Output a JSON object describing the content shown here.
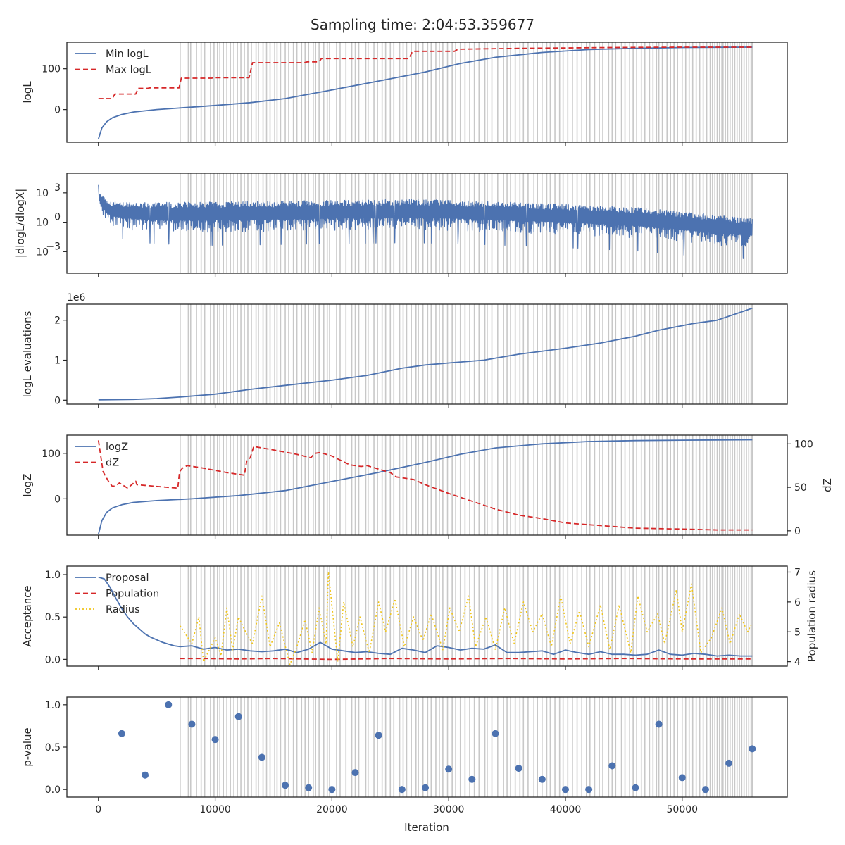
{
  "title": "Sampling time: 2:04:53.359677",
  "xlabel": "Iteration",
  "colors": {
    "blue": "#4c72b0",
    "red": "#d62728",
    "yellow": "#f0c419",
    "vline": "#c8c8c8",
    "axis": "#262626"
  },
  "chart_data": [
    {
      "type": "line",
      "panel": "logL",
      "ylabel": "logL",
      "ylim": [
        -80,
        165
      ],
      "yticks": [
        0,
        100
      ],
      "xlim": [
        -2700,
        59000
      ],
      "xticks": [
        0,
        10000,
        20000,
        30000,
        40000,
        50000
      ],
      "legend": "top-left",
      "series": [
        {
          "name": "Min logL",
          "style": "solid",
          "color": "#4c72b0",
          "x": [
            0,
            300,
            700,
            1200,
            2000,
            3000,
            4000,
            5000,
            7000,
            10000,
            13000,
            16000,
            20000,
            24000,
            28000,
            31000,
            34000,
            38000,
            42000,
            46000,
            50000,
            53000,
            56000
          ],
          "y": [
            -72,
            -45,
            -30,
            -20,
            -12,
            -6,
            -3,
            0,
            4,
            10,
            17,
            27,
            48,
            70,
            92,
            113,
            128,
            140,
            147,
            150,
            152,
            152.5,
            153
          ]
        },
        {
          "name": "Max logL",
          "style": "dashed",
          "color": "#d62728",
          "x": [
            0,
            1200,
            1400,
            3200,
            3400,
            4200,
            4400,
            6900,
            7100,
            9700,
            9900,
            12900,
            13200,
            17600,
            17900,
            18900,
            19100,
            26600,
            26900,
            30500,
            30800,
            36000,
            40000,
            44000,
            50000,
            56000
          ],
          "y": [
            27,
            27,
            38,
            38,
            52,
            52,
            53,
            53,
            77,
            77,
            78,
            78,
            115,
            115,
            117,
            117,
            125,
            125,
            143,
            143,
            148,
            150,
            151,
            152,
            153,
            153
          ]
        }
      ]
    },
    {
      "type": "line",
      "panel": "dlogL",
      "ylabel": "|dlogL/dlogX|",
      "yscale": "log",
      "ylim": [
        -5.2,
        5.0
      ],
      "yticks": [
        3,
        0,
        -3
      ],
      "yticklabels": [
        "10",
        "10",
        "10"
      ],
      "ytickexp": [
        "3",
        "0",
        "−3"
      ],
      "xlim": [
        -2700,
        59000
      ],
      "series": [
        {
          "name": "",
          "style": "noisy-band",
          "color": "#4c72b0",
          "x": [
            0,
            200,
            1000,
            3000,
            8000,
            15000,
            20000,
            27000,
            33000,
            40000,
            47000,
            53000,
            56000
          ],
          "center_log10": [
            3.0,
            2.2,
            1.3,
            1.1,
            1.0,
            1.1,
            1.2,
            1.3,
            1.1,
            0.8,
            0.4,
            -0.3,
            -0.6
          ],
          "spread": [
            0.5,
            0.8,
            1.0,
            1.2,
            1.3,
            1.3,
            1.3,
            1.3,
            1.3,
            1.3,
            1.3,
            1.3,
            1.2
          ]
        }
      ]
    },
    {
      "type": "line",
      "panel": "evaluations",
      "ylabel": "logL evaluations",
      "yscale_label": "1e6",
      "ylim": [
        -0.1,
        2.4
      ],
      "yticks": [
        0,
        1,
        2
      ],
      "xlim": [
        -2700,
        59000
      ],
      "series": [
        {
          "name": "",
          "style": "solid",
          "color": "#4c72b0",
          "x": [
            0,
            3000,
            5000,
            7000,
            10000,
            13000,
            16000,
            20000,
            23000,
            26000,
            28000,
            30000,
            33000,
            36000,
            40000,
            43000,
            46000,
            48000,
            51000,
            53000,
            55000,
            56000
          ],
          "y": [
            0.01,
            0.02,
            0.04,
            0.08,
            0.15,
            0.27,
            0.37,
            0.5,
            0.62,
            0.8,
            0.88,
            0.93,
            1.0,
            1.15,
            1.3,
            1.43,
            1.6,
            1.75,
            1.92,
            2.0,
            2.2,
            2.3
          ]
        }
      ]
    },
    {
      "type": "line",
      "panel": "logZ",
      "ylabel": "logZ",
      "ylabel_right": "dZ",
      "ylim": [
        -80,
        140
      ],
      "yticks": [
        0,
        100
      ],
      "ylim_right": [
        -5,
        110
      ],
      "yticks_right": [
        0,
        50,
        100
      ],
      "xlim": [
        -2700,
        59000
      ],
      "legend": "top-left",
      "series": [
        {
          "name": "logZ",
          "style": "solid",
          "color": "#4c72b0",
          "axis": "left",
          "x": [
            0,
            300,
            700,
            1200,
            2000,
            3000,
            5000,
            8000,
            12000,
            16000,
            20000,
            24000,
            28000,
            31000,
            34000,
            38000,
            42000,
            46000,
            50000,
            56000
          ],
          "y": [
            -78,
            -48,
            -30,
            -20,
            -13,
            -8,
            -4,
            0,
            7,
            18,
            38,
            58,
            80,
            98,
            112,
            121,
            126,
            128,
            129,
            130
          ]
        },
        {
          "name": "dZ",
          "style": "dashed",
          "color": "#d62728",
          "axis": "right",
          "x": [
            0,
            400,
            900,
            1200,
            1500,
            1800,
            2500,
            3200,
            3300,
            6800,
            6950,
            7200,
            7600,
            9000,
            11000,
            12500,
            12700,
            13000,
            13300,
            15000,
            17000,
            18200,
            18500,
            19000,
            20000,
            21500,
            22500,
            23000,
            24000,
            25000,
            25500,
            26500,
            27000,
            28000,
            30000,
            32000,
            34000,
            36000,
            38000,
            40000,
            43000,
            46000,
            50000,
            53000,
            56000
          ],
          "y": [
            104,
            68,
            56,
            51,
            52,
            55,
            49,
            57,
            53,
            49,
            68,
            72,
            75,
            72,
            67,
            64,
            80,
            84,
            97,
            93,
            88,
            84,
            89,
            90,
            86,
            76,
            74,
            75,
            71,
            67,
            62,
            60,
            59,
            53,
            43,
            34,
            25,
            18,
            14,
            9,
            6,
            3,
            2,
            1,
            1
          ]
        }
      ]
    },
    {
      "type": "line",
      "panel": "acceptance",
      "ylabel": "Acceptance",
      "ylabel_right": "Population radius",
      "ylim": [
        -0.08,
        1.1
      ],
      "yticks": [
        0.0,
        0.5,
        1.0
      ],
      "yticklabels": [
        "0.0",
        "0.5",
        "1.0"
      ],
      "ylim_right": [
        3.85,
        7.2
      ],
      "yticks_right": [
        4,
        5,
        6,
        7
      ],
      "xlim": [
        -2700,
        59000
      ],
      "legend": "top-left",
      "series": [
        {
          "name": "Proposal",
          "style": "solid",
          "color": "#4c72b0",
          "axis": "left",
          "x": [
            0,
            500,
            1000,
            1500,
            2000,
            2500,
            3000,
            3500,
            4000,
            4500,
            5000,
            5500,
            6000,
            6500,
            7000,
            8000,
            9000,
            10000,
            11000,
            12000,
            13000,
            14000,
            15000,
            16000,
            17000,
            18000,
            19000,
            20000,
            21000,
            22000,
            23000,
            24000,
            25000,
            26000,
            27000,
            28000,
            29000,
            30000,
            31000,
            32000,
            33000,
            34000,
            35000,
            36000,
            37000,
            38000,
            39000,
            40000,
            41000,
            42000,
            43000,
            44000,
            45000,
            46000,
            47000,
            48000,
            49000,
            50000,
            51000,
            52000,
            53000,
            54000,
            55000,
            56000
          ],
          "y": [
            0.97,
            0.95,
            0.85,
            0.72,
            0.6,
            0.5,
            0.42,
            0.36,
            0.3,
            0.26,
            0.23,
            0.2,
            0.18,
            0.16,
            0.15,
            0.16,
            0.12,
            0.14,
            0.11,
            0.12,
            0.1,
            0.09,
            0.1,
            0.12,
            0.08,
            0.12,
            0.2,
            0.12,
            0.1,
            0.08,
            0.09,
            0.07,
            0.06,
            0.13,
            0.11,
            0.08,
            0.16,
            0.14,
            0.11,
            0.13,
            0.12,
            0.17,
            0.08,
            0.08,
            0.09,
            0.1,
            0.06,
            0.11,
            0.08,
            0.06,
            0.09,
            0.06,
            0.06,
            0.05,
            0.06,
            0.11,
            0.06,
            0.05,
            0.07,
            0.06,
            0.04,
            0.05,
            0.04,
            0.04
          ]
        },
        {
          "name": "Population",
          "style": "dashed",
          "color": "#d62728",
          "axis": "left",
          "x": [
            7000,
            9000,
            12000,
            15000,
            20000,
            25000,
            30000,
            35000,
            40000,
            45000,
            50000,
            56000
          ],
          "y": [
            0.01,
            0.01,
            0.005,
            0.01,
            0.0,
            0.01,
            0.005,
            0.01,
            0.005,
            0.01,
            0.005,
            0.005
          ]
        },
        {
          "name": "Radius",
          "style": "dotted",
          "color": "#f0c419",
          "axis": "right",
          "x": [
            7000,
            8000,
            8600,
            9000,
            10000,
            10500,
            11000,
            11500,
            12000,
            12600,
            13200,
            14000,
            14700,
            15500,
            16400,
            17000,
            17700,
            18300,
            18900,
            19500,
            19700,
            20500,
            21000,
            21800,
            22400,
            23200,
            24000,
            24600,
            25400,
            26200,
            27000,
            27800,
            28500,
            29500,
            30100,
            30900,
            31700,
            32300,
            33200,
            34000,
            34800,
            35600,
            36400,
            37200,
            38000,
            38800,
            39600,
            40400,
            41200,
            42000,
            43000,
            43800,
            44600,
            45600,
            46200,
            47000,
            47900,
            48500,
            49500,
            50000,
            50800,
            51600,
            52500,
            53400,
            54100,
            54900,
            55600,
            56000
          ],
          "y": [
            5.2,
            4.6,
            5.5,
            4.0,
            4.8,
            4.2,
            5.8,
            4.4,
            5.5,
            5.0,
            4.6,
            6.2,
            4.5,
            5.3,
            3.9,
            4.5,
            5.4,
            4.3,
            5.8,
            4.6,
            7.0,
            4.0,
            6.0,
            4.5,
            5.5,
            4.3,
            6.0,
            5.0,
            6.1,
            4.5,
            5.5,
            4.7,
            5.6,
            4.4,
            5.8,
            5.0,
            6.2,
            4.5,
            5.5,
            4.4,
            5.8,
            4.6,
            6.0,
            5.0,
            5.6,
            4.5,
            6.2,
            4.6,
            5.7,
            4.5,
            5.9,
            4.4,
            5.9,
            4.3,
            6.2,
            5.0,
            5.6,
            4.6,
            6.4,
            5.0,
            6.6,
            4.3,
            4.8,
            5.8,
            4.6,
            5.6,
            5.0,
            5.3
          ]
        }
      ]
    },
    {
      "type": "scatter",
      "panel": "pvalue",
      "ylabel": "p-value",
      "ylim": [
        -0.09,
        1.09
      ],
      "yticks": [
        0.0,
        0.5,
        1.0
      ],
      "yticklabels": [
        "0.0",
        "0.5",
        "1.0"
      ],
      "xlim": [
        -2700,
        59000
      ],
      "xticks": [
        0,
        10000,
        20000,
        30000,
        40000,
        50000
      ],
      "xticklabels": [
        "0",
        "10000",
        "20000",
        "30000",
        "40000",
        "50000"
      ],
      "series": [
        {
          "name": "",
          "color": "#4c72b0",
          "x": [
            2000,
            4000,
            6000,
            8000,
            10000,
            12000,
            14000,
            16000,
            18000,
            20000,
            22000,
            24000,
            26000,
            28000,
            30000,
            32000,
            34000,
            36000,
            38000,
            40000,
            42000,
            44000,
            46000,
            48000,
            50000,
            52000,
            54000,
            56000
          ],
          "y": [
            0.66,
            0.17,
            1.0,
            0.77,
            0.59,
            0.86,
            0.38,
            0.05,
            0.02,
            0.0,
            0.2,
            0.64,
            0.0,
            0.02,
            0.24,
            0.12,
            0.66,
            0.25,
            0.12,
            0.0,
            0.0,
            0.28,
            0.02,
            0.77,
            0.14,
            0.0,
            0.31,
            0.48
          ]
        }
      ]
    }
  ],
  "vlines_x": [
    7000,
    7700,
    7900,
    8400,
    8800,
    9100,
    9600,
    9900,
    10200,
    10400,
    10700,
    11000,
    11300,
    11600,
    11900,
    12200,
    12500,
    12800,
    13100,
    13500,
    13700,
    14100,
    14400,
    14700,
    15100,
    15300,
    15600,
    16000,
    16300,
    16700,
    17000,
    17400,
    17700,
    18000,
    18400,
    18600,
    18900,
    19300,
    19600,
    19800,
    20400,
    20700,
    21200,
    21700,
    22000,
    22300,
    22900,
    23100,
    23600,
    23900,
    24300,
    24600,
    25000,
    25300,
    25800,
    26100,
    26400,
    26800,
    27200,
    27400,
    27800,
    28200,
    28500,
    28900,
    29200,
    29500,
    29900,
    30300,
    30600,
    31000,
    31400,
    31800,
    32200,
    32600,
    33100,
    33300,
    33700,
    34200,
    34700,
    35000,
    35300,
    35700,
    36100,
    36400,
    36800,
    37300,
    37600,
    38000,
    38400,
    38700,
    39100,
    39500,
    39800,
    40200,
    40600,
    41000,
    41400,
    41800,
    42100,
    42500,
    42900,
    43200,
    43700,
    44000,
    44300,
    44800,
    45100,
    45500,
    45800,
    46100,
    46500,
    46800,
    47200,
    47500,
    47800,
    48000,
    48300,
    48700,
    49000,
    49300,
    49600,
    50000,
    50300,
    50600,
    50900,
    51200,
    51500,
    51800,
    52100,
    52400,
    52600,
    52800,
    53000,
    53200,
    53400,
    53500,
    53700,
    53900,
    54100,
    54300,
    54500,
    54700,
    54900,
    55100,
    55300,
    55500,
    55700,
    55900,
    56000
  ]
}
